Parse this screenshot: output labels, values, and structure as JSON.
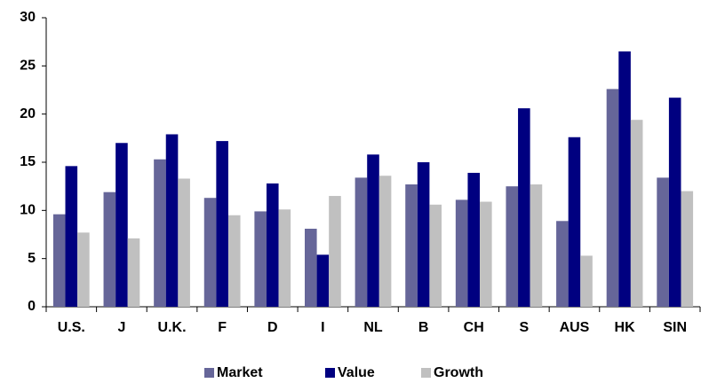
{
  "chart_data": {
    "type": "bar",
    "categories": [
      "U.S.",
      "J",
      "U.K.",
      "F",
      "D",
      "I",
      "NL",
      "B",
      "CH",
      "S",
      "AUS",
      "HK",
      "SIN"
    ],
    "series": [
      {
        "name": "Market",
        "color": "#666699",
        "values": [
          9.6,
          11.9,
          15.3,
          11.3,
          9.9,
          8.1,
          13.4,
          12.7,
          11.1,
          12.5,
          8.9,
          22.6,
          13.4
        ]
      },
      {
        "name": "Value",
        "color": "#000080",
        "values": [
          14.6,
          17.0,
          17.9,
          17.2,
          12.8,
          5.4,
          15.8,
          15.0,
          13.9,
          20.6,
          17.6,
          26.5,
          21.7
        ]
      },
      {
        "name": "Growth",
        "color": "#c0c0c0",
        "values": [
          7.7,
          7.1,
          13.3,
          9.5,
          10.1,
          11.5,
          13.6,
          10.6,
          10.9,
          12.7,
          5.3,
          19.4,
          12.0
        ]
      }
    ],
    "ylim": [
      0,
      30
    ],
    "yticks": [
      0,
      5,
      10,
      15,
      20,
      25,
      30
    ],
    "grid": false,
    "legend": "bottom"
  }
}
